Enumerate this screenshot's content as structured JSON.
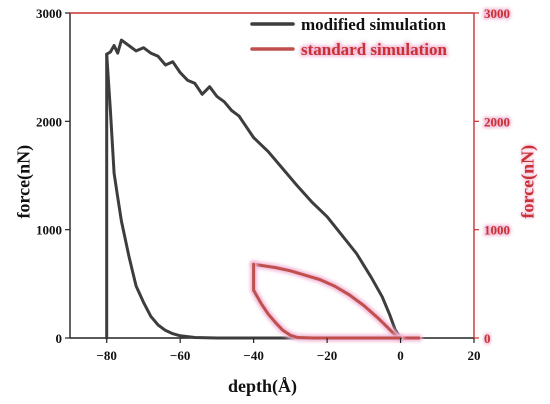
{
  "chart_data": {
    "type": "line",
    "xlabel": "depth(Å)",
    "ylabel": "force(nN)",
    "ylabel_right": "force(nN)",
    "xlim": [
      -90,
      20
    ],
    "ylim": [
      0,
      3000
    ],
    "ylim_right": [
      0,
      3000
    ],
    "x_ticks": [
      -80,
      -60,
      -40,
      -20,
      0,
      20
    ],
    "y_ticks": [
      0,
      1000,
      2000,
      3000
    ],
    "y_ticks_right": [
      0,
      1000,
      2000,
      3000
    ],
    "legend_position": "top-right",
    "colors": {
      "modified": "#3d3d3d",
      "standard": "#c0504d",
      "right_axis": "#c83232",
      "glow": "#f2b8d8"
    },
    "series": [
      {
        "name": "modified simulation",
        "axis": "left",
        "points": [
          [
            -80,
            0
          ],
          [
            -80,
            1000
          ],
          [
            -80,
            2000
          ],
          [
            -80,
            2620
          ],
          [
            -79,
            2640
          ],
          [
            -78,
            2700
          ],
          [
            -77,
            2630
          ],
          [
            -76,
            2750
          ],
          [
            -74,
            2700
          ],
          [
            -72,
            2650
          ],
          [
            -70,
            2680
          ],
          [
            -68,
            2630
          ],
          [
            -66,
            2600
          ],
          [
            -64,
            2520
          ],
          [
            -62,
            2550
          ],
          [
            -60,
            2450
          ],
          [
            -58,
            2380
          ],
          [
            -56,
            2350
          ],
          [
            -54,
            2250
          ],
          [
            -52,
            2320
          ],
          [
            -50,
            2230
          ],
          [
            -48,
            2180
          ],
          [
            -46,
            2100
          ],
          [
            -44,
            2050
          ],
          [
            -42,
            1950
          ],
          [
            -40,
            1850
          ],
          [
            -36,
            1720
          ],
          [
            -32,
            1560
          ],
          [
            -28,
            1400
          ],
          [
            -24,
            1250
          ],
          [
            -20,
            1120
          ],
          [
            -16,
            950
          ],
          [
            -12,
            780
          ],
          [
            -8,
            560
          ],
          [
            -5,
            380
          ],
          [
            -3,
            220
          ],
          [
            -1.5,
            80
          ],
          [
            0,
            0
          ],
          [
            2,
            0
          ],
          [
            5,
            0
          ]
        ]
      },
      {
        "name": "modified simulation unloading",
        "axis": "left",
        "points": [
          [
            -80,
            2620
          ],
          [
            -79,
            2100
          ],
          [
            -78,
            1520
          ],
          [
            -77,
            1300
          ],
          [
            -76,
            1080
          ],
          [
            -75,
            920
          ],
          [
            -74,
            760
          ],
          [
            -73,
            620
          ],
          [
            -72,
            480
          ],
          [
            -70,
            330
          ],
          [
            -68,
            200
          ],
          [
            -66,
            120
          ],
          [
            -64,
            70
          ],
          [
            -62,
            40
          ],
          [
            -60,
            20
          ],
          [
            -56,
            5
          ],
          [
            -50,
            0
          ],
          [
            -40,
            0
          ],
          [
            -20,
            0
          ],
          [
            0,
            0
          ]
        ]
      },
      {
        "name": "standard simulation",
        "axis": "right",
        "points": [
          [
            -40,
            680
          ],
          [
            -38,
            670
          ],
          [
            -34,
            650
          ],
          [
            -30,
            620
          ],
          [
            -26,
            580
          ],
          [
            -22,
            540
          ],
          [
            -18,
            480
          ],
          [
            -14,
            400
          ],
          [
            -10,
            300
          ],
          [
            -6,
            180
          ],
          [
            -3,
            80
          ],
          [
            -1,
            10
          ],
          [
            0,
            0
          ],
          [
            2,
            0
          ],
          [
            5,
            0
          ]
        ]
      },
      {
        "name": "standard simulation unloading",
        "axis": "right",
        "points": [
          [
            -40,
            680
          ],
          [
            -40,
            440
          ],
          [
            -38,
            320
          ],
          [
            -36,
            220
          ],
          [
            -34,
            140
          ],
          [
            -32,
            70
          ],
          [
            -30,
            25
          ],
          [
            -28,
            5
          ],
          [
            -24,
            0
          ],
          [
            -10,
            0
          ],
          [
            0,
            0
          ]
        ]
      }
    ]
  },
  "legend": [
    {
      "label": "modified simulation",
      "color": "#3d3d3d"
    },
    {
      "label": "standard simulation",
      "color": "#c0504d"
    }
  ]
}
